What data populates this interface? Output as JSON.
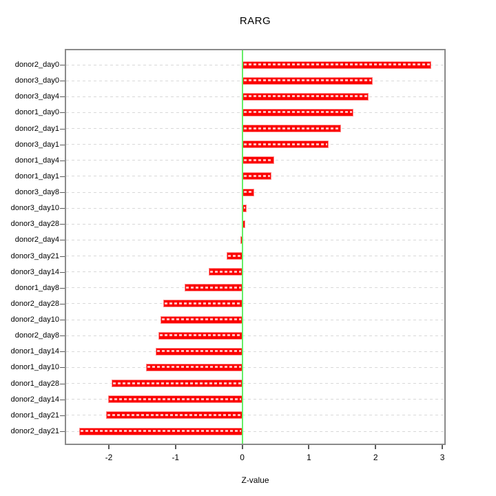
{
  "chart_data": {
    "type": "bar",
    "orientation": "horizontal",
    "title": "RARG",
    "xlabel": "Z-value",
    "ylabel": "",
    "categories": [
      "donor2_day0",
      "donor3_day0",
      "donor3_day4",
      "donor1_day0",
      "donor2_day1",
      "donor3_day1",
      "donor1_day4",
      "donor1_day1",
      "donor3_day8",
      "donor3_day10",
      "donor3_day28",
      "donor2_day4",
      "donor3_day21",
      "donor3_day14",
      "donor1_day8",
      "donor2_day28",
      "donor2_day10",
      "donor2_day8",
      "donor1_day14",
      "donor1_day10",
      "donor1_day28",
      "donor2_day14",
      "donor1_day21",
      "donor2_day21"
    ],
    "values": [
      2.83,
      1.96,
      1.89,
      1.67,
      1.48,
      1.29,
      0.48,
      0.44,
      0.18,
      0.07,
      0.05,
      -0.03,
      -0.23,
      -0.5,
      -0.86,
      -1.18,
      -1.23,
      -1.26,
      -1.3,
      -1.44,
      -1.96,
      -2.01,
      -2.04,
      -2.44
    ],
    "x_ticks": [
      -2,
      -1,
      0,
      1,
      2,
      3
    ],
    "xlim": [
      -2.64,
      3.03
    ],
    "zero_line_x": 0,
    "grid": "dashed horizontal line per category",
    "legend": "none",
    "colors": {
      "bar_fill": "#FB0000",
      "bar_border": "#FF8A8A",
      "bar_stripe": "#FFFFFF",
      "zero_line": "#66EE66",
      "gridline": "#D8D8D8",
      "axis_border": "#8A8A8A",
      "tick": "#5A5A5A",
      "text": "#000000",
      "background": "#FFFFFF"
    }
  }
}
